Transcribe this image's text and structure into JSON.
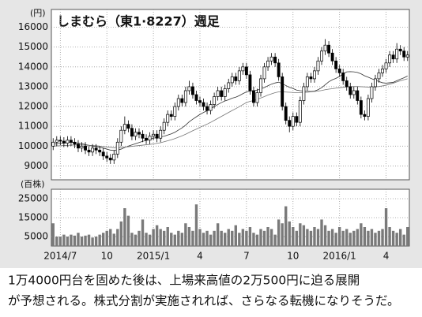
{
  "chart_data": [
    {
      "type": "candlestick",
      "title": "しまむら（東1·8227）週足",
      "y_label": "(円)",
      "ylim": [
        8300,
        16900
      ],
      "yticks": [
        9000,
        10000,
        11000,
        12000,
        13000,
        14000,
        15000,
        16000
      ],
      "grid": true,
      "open": [
        10000,
        10200,
        10300,
        10250,
        10150,
        10300,
        10200,
        10100,
        9900,
        10000,
        9800,
        9700,
        9900,
        9800,
        9700,
        9500,
        9400,
        9300,
        9600,
        10200,
        10800,
        11100,
        10900,
        10500,
        10700,
        10600,
        10400,
        10300,
        10500,
        10600,
        10400,
        10800,
        11200,
        11600,
        11500,
        12000,
        12400,
        12200,
        12800,
        13000,
        12600,
        12300,
        12200,
        12000,
        11800,
        12100,
        12500,
        12800,
        12500,
        12900,
        13200,
        13500,
        13300,
        13800,
        14000,
        13600,
        12800,
        12200,
        12700,
        13400,
        14000,
        14300,
        14500,
        14200,
        13500,
        12000,
        11300,
        11000,
        11500,
        11200,
        12300,
        13000,
        13500,
        13400,
        13800,
        14300,
        14800,
        15100,
        14700,
        14300,
        13900,
        13700,
        13300,
        13000,
        12600,
        12800,
        12300,
        11600,
        11500,
        12400,
        13000,
        13400,
        13700,
        13900,
        14200,
        14600,
        14400,
        14900,
        14800,
        14500
      ],
      "high": [
        10400,
        10500,
        10500,
        10450,
        10500,
        10500,
        10400,
        10300,
        10200,
        10200,
        10000,
        10100,
        10100,
        10000,
        9900,
        9700,
        9600,
        9800,
        10400,
        11000,
        11500,
        11300,
        11100,
        10900,
        10900,
        10800,
        10600,
        10700,
        10800,
        10800,
        11000,
        11400,
        11800,
        11800,
        12200,
        12600,
        12600,
        13000,
        13300,
        13200,
        12800,
        12500,
        12400,
        12200,
        12300,
        12700,
        13000,
        13000,
        13100,
        13400,
        13700,
        13700,
        14000,
        14200,
        14200,
        13800,
        13000,
        12900,
        13600,
        14200,
        14500,
        14700,
        14700,
        14400,
        13700,
        12200,
        11500,
        11700,
        11700,
        12500,
        13200,
        13700,
        13700,
        14000,
        14500,
        15000,
        15400,
        15300,
        14900,
        14500,
        14100,
        13900,
        13500,
        13200,
        13000,
        13000,
        12500,
        11800,
        12600,
        13200,
        13600,
        13900,
        14100,
        14400,
        14800,
        14800,
        15200,
        15100,
        15000,
        14800
      ],
      "low": [
        9800,
        10000,
        10050,
        9950,
        9950,
        10000,
        9900,
        9700,
        9700,
        9600,
        9500,
        9500,
        9600,
        9500,
        9300,
        9200,
        9100,
        9100,
        9400,
        10000,
        10600,
        10700,
        10300,
        10300,
        10400,
        10200,
        10100,
        10100,
        10300,
        10200,
        10200,
        10600,
        11000,
        11300,
        11300,
        11800,
        12000,
        12000,
        12600,
        12400,
        12100,
        12000,
        11800,
        11600,
        11600,
        11900,
        12300,
        12300,
        12300,
        12700,
        13000,
        13100,
        13100,
        13600,
        13400,
        12600,
        12000,
        12000,
        12500,
        13200,
        13800,
        14100,
        14000,
        13300,
        11800,
        11100,
        10700,
        10800,
        11000,
        11000,
        12100,
        12800,
        13200,
        13200,
        13600,
        14100,
        14600,
        14500,
        14100,
        13700,
        13500,
        13100,
        12800,
        12400,
        12400,
        12100,
        11400,
        11300,
        11300,
        12200,
        12800,
        13200,
        13500,
        13700,
        14000,
        14200,
        14200,
        14600,
        14300,
        14300
      ],
      "close": [
        10200,
        10300,
        10250,
        10150,
        10300,
        10200,
        10100,
        9900,
        10000,
        9800,
        9700,
        9900,
        9800,
        9700,
        9500,
        9400,
        9300,
        9600,
        10200,
        10800,
        11100,
        10900,
        10500,
        10700,
        10600,
        10400,
        10300,
        10500,
        10600,
        10400,
        10800,
        11200,
        11600,
        11500,
        12000,
        12400,
        12200,
        12800,
        13000,
        12600,
        12300,
        12200,
        12000,
        11800,
        12100,
        12500,
        12800,
        12500,
        12900,
        13200,
        13500,
        13300,
        13800,
        14000,
        13600,
        12800,
        12200,
        12700,
        13400,
        14000,
        14300,
        14500,
        14200,
        13500,
        12000,
        11300,
        11000,
        11500,
        11200,
        12300,
        13000,
        13500,
        13400,
        13800,
        14300,
        14800,
        15100,
        14700,
        14300,
        13900,
        13700,
        13300,
        13000,
        12600,
        12800,
        12300,
        11600,
        11500,
        12400,
        13000,
        13400,
        13700,
        13900,
        14200,
        14600,
        14400,
        14900,
        14800,
        14500,
        14600
      ],
      "series": [
        {
          "color": "#333333",
          "values": [
            10100,
            10120,
            10150,
            10160,
            10180,
            10190,
            10180,
            10150,
            10120,
            10080,
            10040,
            10000,
            9980,
            9950,
            9900,
            9850,
            9800,
            9780,
            9800,
            9850,
            9930,
            10000,
            10060,
            10120,
            10180,
            10240,
            10290,
            10350,
            10400,
            10440,
            10470,
            10500,
            10560,
            10620,
            10700,
            10810,
            10920,
            11060,
            11230,
            11360,
            11480,
            11600,
            11700,
            11790,
            11890,
            12000,
            12100,
            12200,
            12280,
            12340,
            12420,
            12470,
            12550,
            12650,
            12740,
            12780,
            12800,
            12830,
            12890,
            12960,
            13050,
            13130,
            13190,
            13230,
            13150,
            13060,
            12970,
            12910,
            12830,
            12800,
            12780,
            12770,
            12760,
            12780,
            12850,
            12950,
            13100,
            13250,
            13350,
            13420,
            13520,
            13650,
            13750,
            13760,
            13750,
            13720,
            13650,
            13550,
            13480,
            13400,
            13330,
            13260,
            13200,
            13180,
            13200,
            13220,
            13300,
            13380,
            13450,
            13540
          ]
        },
        {
          "color": "#777777",
          "values": [
            10000,
            10010,
            10020,
            10030,
            10040,
            10050,
            10060,
            10060,
            10060,
            10050,
            10040,
            10030,
            10020,
            10000,
            9980,
            9960,
            9940,
            9920,
            9920,
            9930,
            9950,
            9970,
            9990,
            10010,
            10030,
            10050,
            10070,
            10090,
            10110,
            10140,
            10170,
            10220,
            10270,
            10320,
            10380,
            10450,
            10520,
            10600,
            10690,
            10780,
            10860,
            10950,
            11030,
            11110,
            11200,
            11300,
            11400,
            11500,
            11600,
            11700,
            11800,
            11890,
            11990,
            12100,
            12200,
            12260,
            12300,
            12360,
            12430,
            12500,
            12580,
            12640,
            12700,
            12740,
            12740,
            12730,
            12720,
            12710,
            12700,
            12700,
            12710,
            12720,
            12740,
            12760,
            12780,
            12810,
            12850,
            12880,
            12900,
            12930,
            12950,
            12970,
            12990,
            13000,
            13010,
            13010,
            13000,
            12990,
            12980,
            12980,
            12990,
            13010,
            13040,
            13080,
            13130,
            13180,
            13240,
            13300,
            13350,
            13400
          ]
        }
      ]
    },
    {
      "type": "bar",
      "y_label": "(百株)",
      "color": "#7a7a7a",
      "ylim": [
        0,
        30000
      ],
      "yticks": [
        5000,
        15000,
        25000
      ],
      "grid": true,
      "categories": [
        null,
        null,
        "2014/7",
        null,
        null,
        null,
        null,
        null,
        null,
        null,
        null,
        null,
        null,
        null,
        null,
        "10",
        null,
        null,
        null,
        null,
        null,
        null,
        null,
        null,
        null,
        null,
        null,
        null,
        "2015/1",
        null,
        null,
        null,
        null,
        null,
        null,
        null,
        null,
        null,
        null,
        null,
        null,
        "4",
        null,
        null,
        null,
        null,
        null,
        null,
        null,
        null,
        null,
        null,
        null,
        null,
        "7",
        null,
        null,
        null,
        null,
        null,
        null,
        null,
        null,
        null,
        null,
        null,
        null,
        "10",
        null,
        null,
        null,
        null,
        null,
        null,
        null,
        null,
        null,
        null,
        null,
        null,
        "2016/1",
        null,
        null,
        null,
        null,
        null,
        null,
        null,
        null,
        null,
        null,
        null,
        null,
        "4",
        null,
        null,
        null,
        null,
        null,
        null
      ],
      "values": [
        12000,
        5000,
        5000,
        6000,
        5000,
        6000,
        5500,
        7000,
        5000,
        5500,
        6000,
        4500,
        5000,
        6000,
        7000,
        8000,
        9000,
        6500,
        9000,
        13000,
        20000,
        16000,
        7000,
        6000,
        8000,
        14000,
        7000,
        6000,
        9000,
        11000,
        9000,
        8000,
        10000,
        7000,
        6000,
        8000,
        7000,
        12000,
        10000,
        8000,
        22000,
        9000,
        7000,
        8000,
        6000,
        8000,
        12000,
        8000,
        7000,
        9000,
        8000,
        11000,
        7000,
        9000,
        8000,
        10000,
        7000,
        6000,
        9000,
        8000,
        10000,
        9000,
        6000,
        14000,
        12000,
        21000,
        13000,
        10000,
        8000,
        12000,
        11000,
        9000,
        8000,
        10000,
        9000,
        14000,
        11000,
        8000,
        9000,
        7000,
        10000,
        8000,
        9000,
        7000,
        8000,
        9000,
        12000,
        10000,
        8000,
        9000,
        7000,
        8000,
        9000,
        20000,
        10000,
        8000,
        7000,
        9000,
        6000,
        10000
      ]
    }
  ],
  "caption": [
    "1万4000円台を固めた後は、上場来高値の2万500円に迫る展開",
    "が予想される。株式分割が実施されれば、さらなる転機になりそうだ。"
  ]
}
